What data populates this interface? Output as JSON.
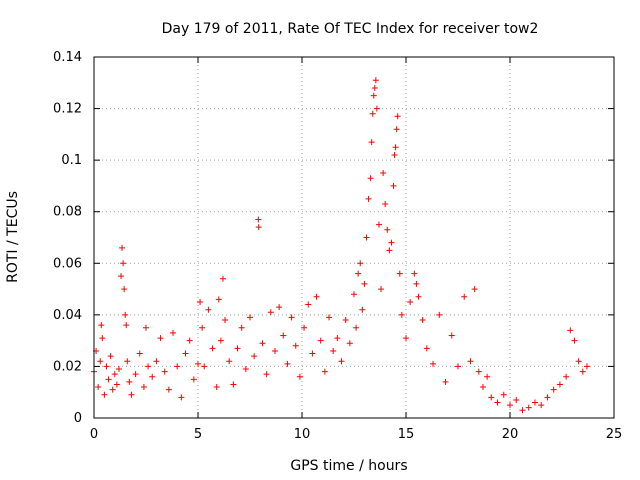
{
  "chart_data": {
    "type": "scatter",
    "title": "Day 179 of 2011, Rate Of TEC Index for receiver tow2",
    "xlabel": "GPS time / hours",
    "ylabel": "ROTI / TECUs",
    "xlim": [
      0,
      25
    ],
    "ylim": [
      0,
      0.14
    ],
    "xticks": [
      "0",
      "5",
      "10",
      "15",
      "20",
      "25"
    ],
    "xtick_values": [
      0,
      5,
      10,
      15,
      20,
      25
    ],
    "yticks": [
      "0",
      "0.02",
      "0.04",
      "0.06",
      "0.08",
      "0.1",
      "0.12",
      "0.14"
    ],
    "ytick_values": [
      0,
      0.02,
      0.04,
      0.06,
      0.08,
      0.1,
      0.12,
      0.14
    ],
    "grid": true,
    "marker": "+",
    "color": "#ff0000",
    "series": [
      {
        "name": "ROTI",
        "points": [
          [
            0.0,
            0.018
          ],
          [
            0.1,
            0.026
          ],
          [
            0.2,
            0.012
          ],
          [
            0.3,
            0.022
          ],
          [
            0.35,
            0.036
          ],
          [
            0.4,
            0.031
          ],
          [
            0.5,
            0.009
          ],
          [
            0.6,
            0.02
          ],
          [
            0.7,
            0.015
          ],
          [
            0.8,
            0.024
          ],
          [
            0.9,
            0.011
          ],
          [
            1.0,
            0.017
          ],
          [
            1.1,
            0.013
          ],
          [
            1.2,
            0.019
          ],
          [
            1.3,
            0.055
          ],
          [
            1.35,
            0.066
          ],
          [
            1.4,
            0.06
          ],
          [
            1.45,
            0.05
          ],
          [
            1.5,
            0.04
          ],
          [
            1.55,
            0.036
          ],
          [
            1.6,
            0.022
          ],
          [
            1.7,
            0.014
          ],
          [
            1.8,
            0.009
          ],
          [
            2.0,
            0.017
          ],
          [
            2.2,
            0.025
          ],
          [
            2.4,
            0.012
          ],
          [
            2.5,
            0.035
          ],
          [
            2.6,
            0.02
          ],
          [
            2.8,
            0.016
          ],
          [
            3.0,
            0.022
          ],
          [
            3.2,
            0.031
          ],
          [
            3.4,
            0.018
          ],
          [
            3.6,
            0.011
          ],
          [
            3.8,
            0.033
          ],
          [
            4.0,
            0.02
          ],
          [
            4.2,
            0.008
          ],
          [
            4.4,
            0.025
          ],
          [
            4.6,
            0.03
          ],
          [
            4.8,
            0.015
          ],
          [
            5.0,
            0.021
          ],
          [
            5.1,
            0.045
          ],
          [
            5.2,
            0.035
          ],
          [
            5.3,
            0.02
          ],
          [
            5.5,
            0.042
          ],
          [
            5.7,
            0.027
          ],
          [
            5.9,
            0.012
          ],
          [
            6.0,
            0.046
          ],
          [
            6.1,
            0.03
          ],
          [
            6.2,
            0.054
          ],
          [
            6.3,
            0.038
          ],
          [
            6.5,
            0.022
          ],
          [
            6.7,
            0.013
          ],
          [
            6.9,
            0.027
          ],
          [
            7.1,
            0.035
          ],
          [
            7.3,
            0.019
          ],
          [
            7.5,
            0.039
          ],
          [
            7.7,
            0.024
          ],
          [
            7.9,
            0.077
          ],
          [
            7.92,
            0.074
          ],
          [
            8.1,
            0.029
          ],
          [
            8.3,
            0.017
          ],
          [
            8.5,
            0.041
          ],
          [
            8.7,
            0.026
          ],
          [
            8.9,
            0.043
          ],
          [
            9.1,
            0.032
          ],
          [
            9.3,
            0.021
          ],
          [
            9.5,
            0.039
          ],
          [
            9.7,
            0.028
          ],
          [
            9.9,
            0.016
          ],
          [
            10.1,
            0.035
          ],
          [
            10.3,
            0.044
          ],
          [
            10.5,
            0.025
          ],
          [
            10.7,
            0.047
          ],
          [
            10.9,
            0.03
          ],
          [
            11.1,
            0.018
          ],
          [
            11.3,
            0.039
          ],
          [
            11.5,
            0.026
          ],
          [
            11.7,
            0.031
          ],
          [
            11.9,
            0.022
          ],
          [
            12.1,
            0.038
          ],
          [
            12.3,
            0.029
          ],
          [
            12.5,
            0.048
          ],
          [
            12.6,
            0.035
          ],
          [
            12.7,
            0.056
          ],
          [
            12.8,
            0.06
          ],
          [
            12.9,
            0.042
          ],
          [
            13.0,
            0.052
          ],
          [
            13.1,
            0.07
          ],
          [
            13.2,
            0.085
          ],
          [
            13.3,
            0.093
          ],
          [
            13.35,
            0.107
          ],
          [
            13.4,
            0.118
          ],
          [
            13.45,
            0.125
          ],
          [
            13.5,
            0.128
          ],
          [
            13.55,
            0.131
          ],
          [
            13.6,
            0.12
          ],
          [
            13.7,
            0.075
          ],
          [
            13.8,
            0.05
          ],
          [
            13.9,
            0.095
          ],
          [
            14.0,
            0.083
          ],
          [
            14.1,
            0.073
          ],
          [
            14.2,
            0.065
          ],
          [
            14.3,
            0.068
          ],
          [
            14.4,
            0.09
          ],
          [
            14.45,
            0.102
          ],
          [
            14.5,
            0.105
          ],
          [
            14.55,
            0.112
          ],
          [
            14.6,
            0.117
          ],
          [
            14.7,
            0.056
          ],
          [
            14.8,
            0.04
          ],
          [
            15.0,
            0.031
          ],
          [
            15.2,
            0.045
          ],
          [
            15.4,
            0.056
          ],
          [
            15.5,
            0.052
          ],
          [
            15.6,
            0.047
          ],
          [
            15.8,
            0.038
          ],
          [
            16.0,
            0.027
          ],
          [
            16.3,
            0.021
          ],
          [
            16.6,
            0.04
          ],
          [
            16.9,
            0.014
          ],
          [
            17.2,
            0.032
          ],
          [
            17.5,
            0.02
          ],
          [
            17.8,
            0.047
          ],
          [
            18.1,
            0.022
          ],
          [
            18.3,
            0.05
          ],
          [
            18.5,
            0.018
          ],
          [
            18.7,
            0.012
          ],
          [
            18.9,
            0.016
          ],
          [
            19.1,
            0.008
          ],
          [
            19.4,
            0.006
          ],
          [
            19.7,
            0.009
          ],
          [
            20.0,
            0.005
          ],
          [
            20.3,
            0.007
          ],
          [
            20.6,
            0.003
          ],
          [
            20.9,
            0.004
          ],
          [
            21.2,
            0.006
          ],
          [
            21.5,
            0.005
          ],
          [
            21.8,
            0.008
          ],
          [
            22.1,
            0.011
          ],
          [
            22.4,
            0.013
          ],
          [
            22.7,
            0.016
          ],
          [
            22.9,
            0.034
          ],
          [
            23.1,
            0.03
          ],
          [
            23.3,
            0.022
          ],
          [
            23.5,
            0.018
          ],
          [
            23.7,
            0.02
          ]
        ]
      }
    ]
  }
}
